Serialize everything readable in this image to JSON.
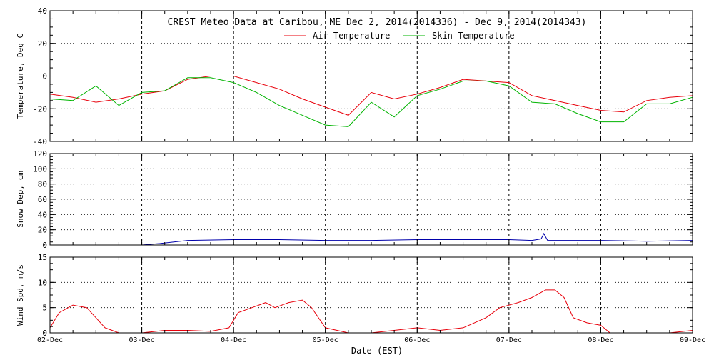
{
  "chart_data": [
    {
      "type": "line",
      "title": "CREST Meteo Data at Caribou, ME   Dec  2, 2014(2014336) - Dec  9, 2014(2014343)",
      "ylabel": "Temperature, Deg C",
      "xlabel": "",
      "xlim": [
        0,
        7
      ],
      "ylim": [
        -40,
        40
      ],
      "yticks": [
        -40,
        -20,
        0,
        20,
        40
      ],
      "grid": true,
      "legend_position": "top-center",
      "x": [
        0,
        0.25,
        0.5,
        0.75,
        1,
        1.25,
        1.5,
        1.75,
        2,
        2.25,
        2.5,
        2.75,
        3,
        3.25,
        3.5,
        3.75,
        4,
        4.25,
        4.5,
        4.75,
        5,
        5.25,
        5.5,
        5.75,
        6,
        6.25,
        6.5,
        6.75,
        7
      ],
      "series": [
        {
          "name": "Air Temperature",
          "color": "#e8000b",
          "values": [
            -11,
            -13,
            -16,
            -14,
            -11,
            -9,
            -2,
            0,
            0,
            -4,
            -8,
            -14,
            -19,
            -24,
            -10,
            -14,
            -11,
            -7,
            -2,
            -3,
            -4,
            -12,
            -15,
            -18,
            -21,
            -22,
            -15,
            -13,
            -12
          ]
        },
        {
          "name": "Skin Temperature",
          "color": "#00b400",
          "values": [
            -14,
            -15,
            -6,
            -18,
            -10,
            -9,
            -1,
            -1,
            -4,
            -10,
            -18,
            -24,
            -30,
            -31,
            -16,
            -25,
            -12,
            -8,
            -3,
            -3,
            -6,
            -16,
            -17,
            -23,
            -28,
            -28,
            -17,
            -17,
            -13
          ]
        }
      ]
    },
    {
      "type": "line",
      "ylabel": "Snow Dep, cm",
      "xlim": [
        0,
        7
      ],
      "ylim": [
        0,
        120
      ],
      "yticks": [
        0,
        20,
        40,
        60,
        80,
        100,
        120
      ],
      "grid": true,
      "x": [
        0,
        0.5,
        1,
        1.2,
        1.5,
        2,
        2.5,
        3,
        3.5,
        4,
        4.5,
        5,
        5.25,
        5.35,
        5.38,
        5.42,
        5.5,
        6,
        6.5,
        7
      ],
      "series": [
        {
          "name": "",
          "color": "#0000aa",
          "values": [
            0,
            0,
            0,
            2,
            6,
            7,
            7,
            6,
            6,
            7,
            7,
            7,
            6,
            8,
            15,
            6,
            6,
            6,
            5,
            6
          ]
        }
      ]
    },
    {
      "type": "line",
      "ylabel": "Wind Spd, m/s",
      "xlabel": "Date (EST)",
      "xlim": [
        0,
        7
      ],
      "ylim": [
        0,
        15
      ],
      "yticks": [
        0,
        5,
        10,
        15
      ],
      "xticks": [
        "02-Dec",
        "03-Dec",
        "04-Dec",
        "05-Dec",
        "06-Dec",
        "07-Dec",
        "08-Dec",
        "09-Dec"
      ],
      "grid": true,
      "x": [
        0,
        0.1,
        0.25,
        0.4,
        0.5,
        0.6,
        0.75,
        1,
        1.25,
        1.5,
        1.75,
        1.95,
        2.05,
        2.2,
        2.35,
        2.45,
        2.6,
        2.75,
        2.85,
        3,
        3.25,
        3.5,
        3.75,
        4,
        4.25,
        4.5,
        4.75,
        4.9,
        5.1,
        5.25,
        5.4,
        5.5,
        5.6,
        5.7,
        5.85,
        6,
        6.1,
        6.25,
        6.5,
        6.75,
        7
      ],
      "series": [
        {
          "name": "",
          "color": "#e8000b",
          "values": [
            1,
            4,
            5.5,
            5,
            3,
            1,
            0,
            0,
            0.5,
            0.5,
            0.3,
            1,
            4,
            5,
            6,
            5,
            6,
            6.5,
            5,
            1,
            0,
            0,
            0.5,
            1,
            0.5,
            1,
            3,
            5,
            6,
            7,
            8.5,
            8.5,
            7,
            3,
            2,
            1.5,
            0,
            0,
            0,
            0,
            0.5
          ]
        }
      ]
    }
  ]
}
